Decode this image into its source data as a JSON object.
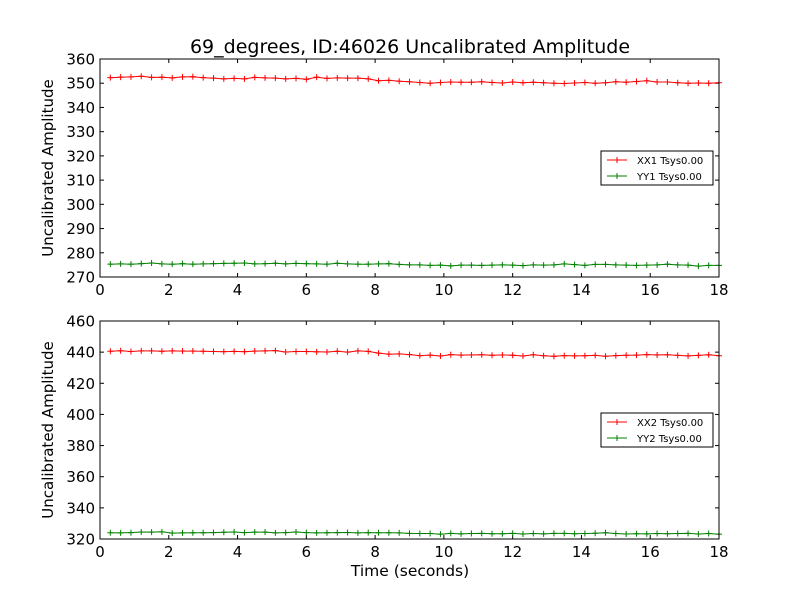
{
  "figure": {
    "title": "69_degrees, ID:46026 Uncalibrated Amplitude",
    "xlabel": "Time (seconds)"
  },
  "colors": {
    "xx": "#ff0000",
    "yy": "#008000",
    "axes": "#000000",
    "background": "#ffffff"
  },
  "chart_data": [
    {
      "type": "line",
      "title": "69_degrees, ID:46026 Uncalibrated Amplitude",
      "xlabel": "",
      "ylabel": "Uncalibrated Amplitude",
      "xlim": [
        0,
        18
      ],
      "ylim": [
        270,
        360
      ],
      "xticks": [
        "0",
        "2",
        "4",
        "6",
        "8",
        "10",
        "12",
        "14",
        "16",
        "18"
      ],
      "yticks": [
        "270",
        "280",
        "290",
        "300",
        "310",
        "320",
        "330",
        "340",
        "350",
        "360"
      ],
      "grid": false,
      "legend": "center-right",
      "x": [
        0.3,
        0.6,
        0.9,
        1.2,
        1.5,
        1.8,
        2.1,
        2.4,
        2.7,
        3.0,
        3.3,
        3.6,
        3.9,
        4.2,
        4.5,
        4.8,
        5.1,
        5.4,
        5.7,
        6.0,
        6.3,
        6.6,
        6.9,
        7.2,
        7.5,
        7.8,
        8.1,
        8.4,
        8.7,
        9.0,
        9.3,
        9.6,
        9.9,
        10.2,
        10.5,
        10.8,
        11.1,
        11.4,
        11.7,
        12.0,
        12.3,
        12.6,
        12.9,
        13.2,
        13.5,
        13.8,
        14.1,
        14.4,
        14.7,
        15.0,
        15.3,
        15.6,
        15.9,
        16.2,
        16.5,
        16.8,
        17.1,
        17.4,
        17.7,
        18.0
      ],
      "series": [
        {
          "name": "XX1 Tsys0.00",
          "color": "#ff0000",
          "values": [
            352.3,
            352.5,
            352.6,
            352.9,
            352.4,
            352.5,
            352.2,
            352.6,
            352.7,
            352.3,
            352.1,
            351.8,
            352.0,
            351.8,
            352.4,
            352.2,
            352.1,
            351.8,
            352.0,
            351.6,
            352.5,
            352.0,
            352.2,
            352.1,
            352.1,
            351.8,
            351.0,
            351.2,
            350.8,
            350.6,
            350.3,
            350.0,
            350.3,
            350.5,
            350.4,
            350.4,
            350.6,
            350.3,
            350.1,
            350.5,
            350.2,
            350.4,
            350.2,
            350.0,
            349.9,
            350.1,
            350.3,
            350.0,
            350.2,
            350.6,
            350.4,
            350.7,
            351.0,
            350.5,
            350.5,
            350.2,
            350.0,
            350.1,
            350.0,
            350.2
          ]
        },
        {
          "name": "YY1 Tsys0.00",
          "color": "#008000",
          "values": [
            275.3,
            275.4,
            275.3,
            275.5,
            275.8,
            275.4,
            275.3,
            275.5,
            275.3,
            275.4,
            275.5,
            275.6,
            275.7,
            275.8,
            275.4,
            275.5,
            275.7,
            275.4,
            275.6,
            275.5,
            275.4,
            275.3,
            275.7,
            275.4,
            275.3,
            275.3,
            275.4,
            275.5,
            275.2,
            275.0,
            275.0,
            274.8,
            274.9,
            274.6,
            274.9,
            274.9,
            274.8,
            274.9,
            275.0,
            274.9,
            274.7,
            275.0,
            274.9,
            275.0,
            275.4,
            275.1,
            274.8,
            275.2,
            275.2,
            275.0,
            274.9,
            274.8,
            274.9,
            275.0,
            275.3,
            275.0,
            274.9,
            274.5,
            274.8,
            274.8
          ]
        }
      ]
    },
    {
      "type": "line",
      "title": "",
      "xlabel": "Time (seconds)",
      "ylabel": "Uncalibrated Amplitude",
      "xlim": [
        0,
        18
      ],
      "ylim": [
        320,
        460
      ],
      "xticks": [
        "0",
        "2",
        "4",
        "6",
        "8",
        "10",
        "12",
        "14",
        "16",
        "18"
      ],
      "yticks": [
        "320",
        "340",
        "360",
        "380",
        "400",
        "420",
        "440",
        "460"
      ],
      "grid": false,
      "legend": "center-right",
      "x": [
        0.3,
        0.6,
        0.9,
        1.2,
        1.5,
        1.8,
        2.1,
        2.4,
        2.7,
        3.0,
        3.3,
        3.6,
        3.9,
        4.2,
        4.5,
        4.8,
        5.1,
        5.4,
        5.7,
        6.0,
        6.3,
        6.6,
        6.9,
        7.2,
        7.5,
        7.8,
        8.1,
        8.4,
        8.7,
        9.0,
        9.3,
        9.6,
        9.9,
        10.2,
        10.5,
        10.8,
        11.1,
        11.4,
        11.7,
        12.0,
        12.3,
        12.6,
        12.9,
        13.2,
        13.5,
        13.8,
        14.1,
        14.4,
        14.7,
        15.0,
        15.3,
        15.6,
        15.9,
        16.2,
        16.5,
        16.8,
        17.1,
        17.4,
        17.7,
        18.0
      ],
      "series": [
        {
          "name": "XX2 Tsys0.00",
          "color": "#ff0000",
          "values": [
            440.6,
            440.9,
            440.4,
            440.8,
            440.8,
            440.6,
            440.8,
            440.7,
            440.7,
            440.6,
            440.4,
            440.3,
            440.5,
            440.3,
            440.7,
            440.8,
            441.0,
            440.1,
            440.4,
            440.4,
            440.2,
            440.1,
            440.6,
            440.0,
            440.8,
            440.5,
            439.4,
            438.7,
            438.9,
            438.4,
            437.8,
            438.1,
            437.5,
            438.4,
            438.1,
            438.2,
            438.3,
            438.0,
            438.2,
            438.0,
            437.5,
            438.3,
            437.7,
            437.3,
            437.8,
            437.6,
            437.7,
            437.9,
            437.4,
            437.8,
            438.0,
            438.1,
            438.4,
            438.2,
            438.3,
            437.9,
            437.6,
            437.9,
            438.3,
            437.7
          ]
        },
        {
          "name": "YY2 Tsys0.00",
          "color": "#008000",
          "values": [
            324.0,
            323.9,
            324.1,
            324.5,
            324.4,
            324.6,
            323.8,
            323.9,
            324.0,
            324.0,
            324.1,
            324.3,
            324.5,
            324.1,
            324.4,
            324.4,
            323.9,
            324.1,
            324.5,
            324.1,
            323.9,
            324.0,
            324.1,
            324.2,
            323.9,
            324.1,
            324.0,
            324.0,
            323.9,
            323.6,
            323.5,
            323.5,
            323.1,
            323.6,
            323.3,
            323.5,
            323.6,
            323.4,
            323.4,
            323.6,
            323.2,
            323.5,
            323.3,
            323.6,
            323.6,
            323.4,
            323.5,
            323.7,
            324.0,
            323.5,
            323.2,
            323.4,
            323.3,
            323.5,
            323.4,
            323.5,
            323.6,
            323.2,
            323.5,
            323.1
          ]
        }
      ]
    }
  ]
}
